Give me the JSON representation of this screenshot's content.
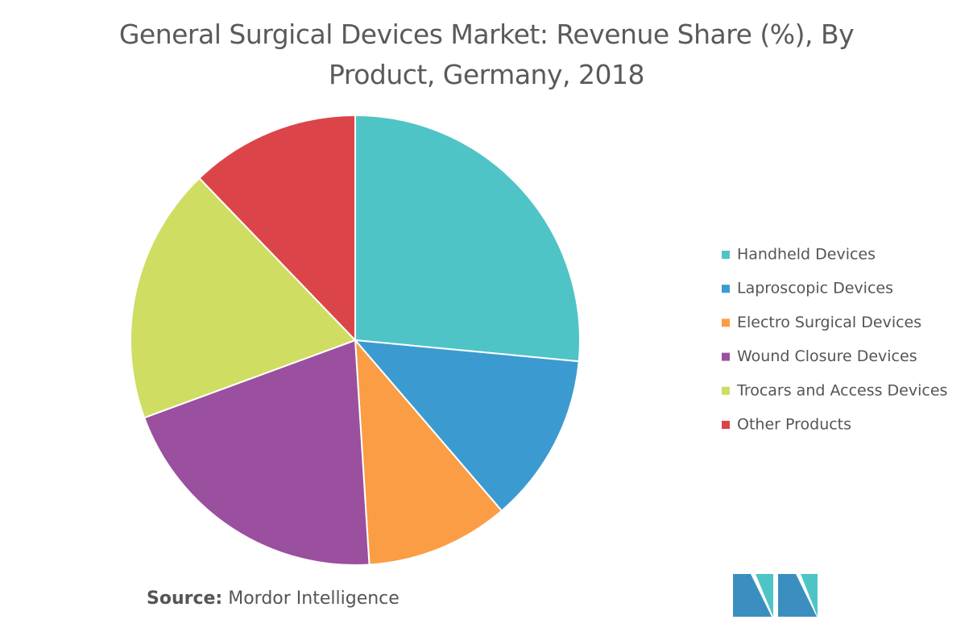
{
  "chart_data": {
    "type": "pie",
    "title": "General Surgical Devices Market: Revenue Share (%), By Product, Germany, 2018",
    "categories": [
      "Handheld Devices",
      "Laproscopic Devices",
      "Electro Surgical Devices",
      "Wound Closure Devices",
      "Trocars and Access Devices",
      "Other Products"
    ],
    "values": [
      26.5,
      12.2,
      10.3,
      20.4,
      18.4,
      12.2
    ],
    "colors": [
      "#4fc4c6",
      "#3b9bd1",
      "#fb9d44",
      "#9b4f9f",
      "#cfdd63",
      "#db4549"
    ],
    "source_label": "Source:",
    "source": "Mordor Intelligence"
  }
}
